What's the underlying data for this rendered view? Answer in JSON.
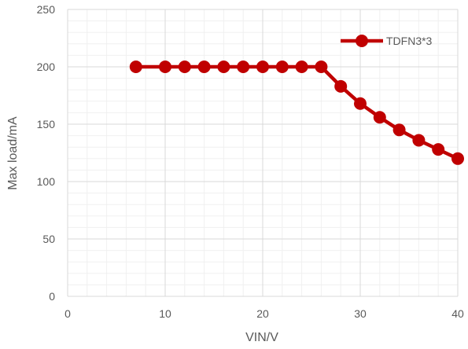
{
  "chart_data": {
    "type": "line",
    "xlabel": "VIN/V",
    "ylabel": "Max load/mA",
    "xlim": [
      0,
      40
    ],
    "ylim": [
      0,
      250
    ],
    "x_ticks": [
      0,
      10,
      20,
      30,
      40
    ],
    "y_ticks": [
      0,
      50,
      100,
      150,
      200,
      250
    ],
    "x_ticks_text": [
      "0",
      "10",
      "20",
      "30",
      "40"
    ],
    "y_ticks_text": [
      "0",
      "50",
      "100",
      "150",
      "200",
      "250"
    ],
    "grid": true,
    "legend_position": "top-right",
    "series": [
      {
        "name": "TDFN3*3",
        "color": "#c00000",
        "marker": "circle",
        "x": [
          7,
          10,
          12,
          14,
          16,
          18,
          20,
          22,
          24,
          26,
          28,
          30,
          32,
          34,
          36,
          38,
          40
        ],
        "y": [
          200,
          200,
          200,
          200,
          200,
          200,
          200,
          200,
          200,
          200,
          183,
          168,
          156,
          145,
          136,
          128,
          120
        ]
      }
    ]
  }
}
